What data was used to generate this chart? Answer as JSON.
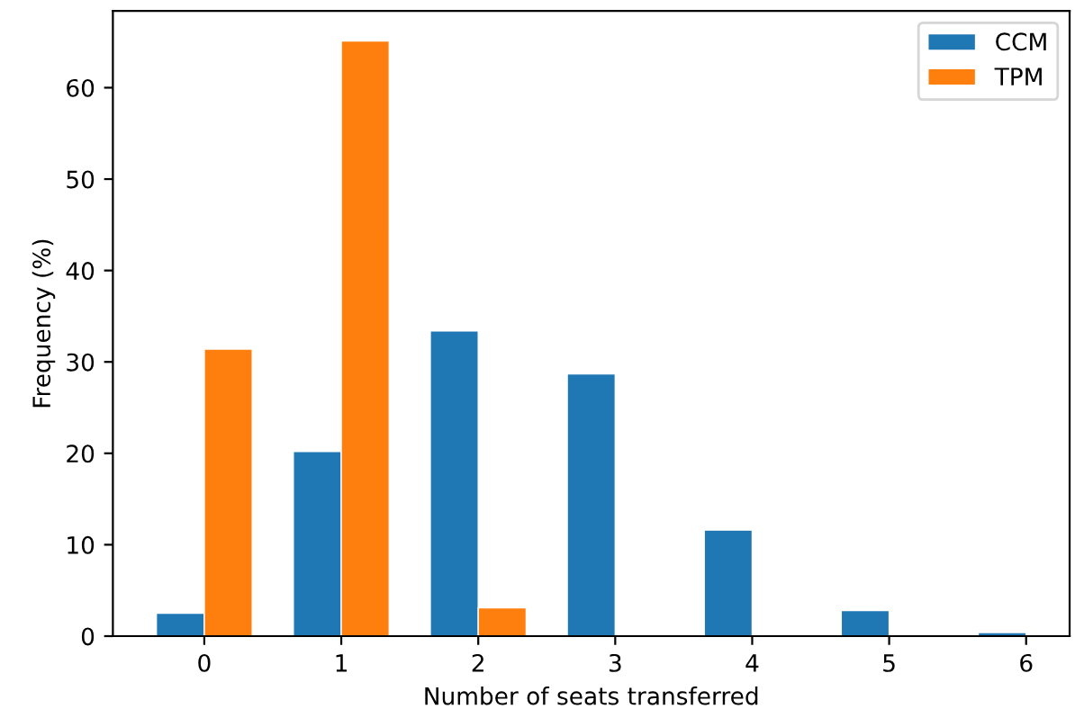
{
  "chart_data": {
    "type": "bar",
    "xlabel": "Number of seats transferred",
    "ylabel": "Frequency (%)",
    "categories": [
      "0",
      "1",
      "2",
      "3",
      "4",
      "5",
      "6"
    ],
    "series": [
      {
        "name": "CCM",
        "color": "#1f77b4",
        "values": [
          2.5,
          20.2,
          33.4,
          28.7,
          11.6,
          2.8,
          0.4
        ]
      },
      {
        "name": "TPM",
        "color": "#ff7f0e",
        "values": [
          31.4,
          65.1,
          3.1,
          null,
          null,
          null,
          null
        ]
      }
    ],
    "ylim": [
      0,
      68.4
    ],
    "yticks": [
      0,
      10,
      20,
      30,
      40,
      50,
      60
    ],
    "grid": false,
    "legend": "top right"
  }
}
